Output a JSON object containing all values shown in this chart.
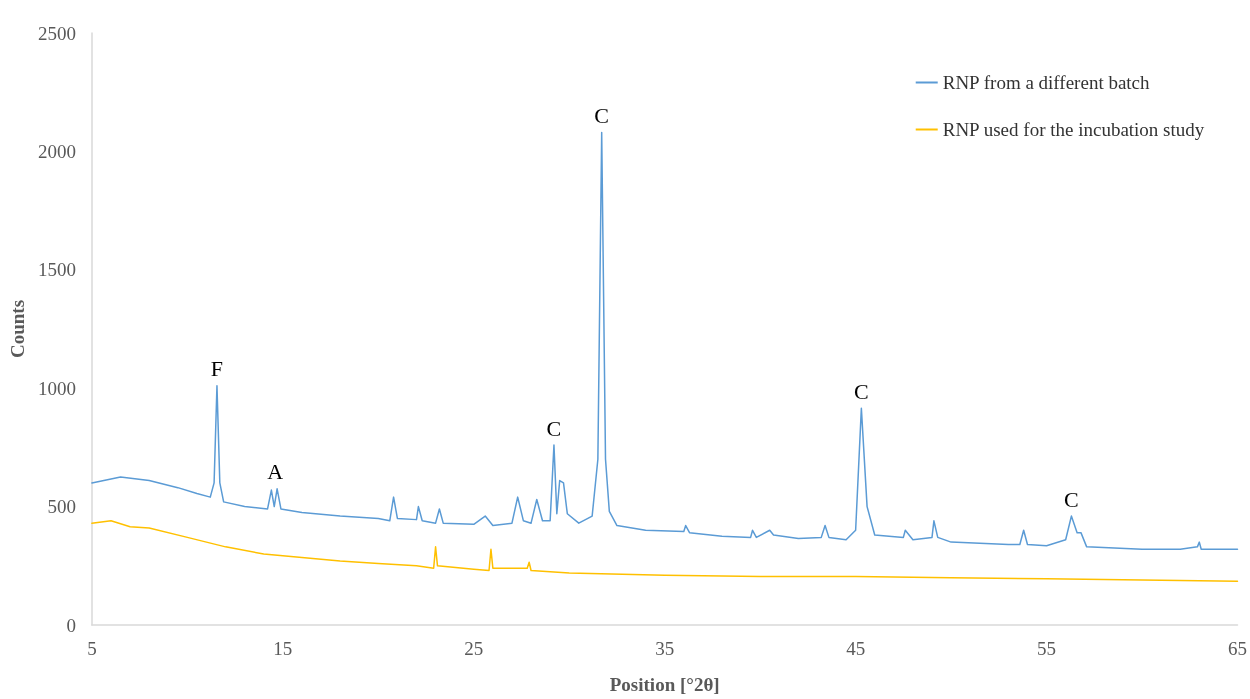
{
  "chart_data": {
    "type": "line",
    "xlabel": "Position [°2θ]",
    "ylabel": "Counts",
    "xlim": [
      5,
      65
    ],
    "xticks": [
      5,
      15,
      25,
      35,
      45,
      55,
      65
    ],
    "ylim": [
      0,
      2500
    ],
    "yticks": [
      0,
      500,
      1000,
      1500,
      2000,
      2500
    ],
    "grid": false,
    "legend": "top right",
    "marker": "none",
    "line_style": "solid",
    "series": [
      {
        "name": "RNP from a different batch",
        "color": "#5b9bd5",
        "x": [
          5,
          6.5,
          8,
          9.5,
          10.5,
          11.2,
          11.4,
          11.55,
          11.7,
          11.9,
          13,
          14.2,
          14.4,
          14.55,
          14.7,
          14.9,
          16,
          18,
          20,
          20.6,
          20.8,
          21,
          22,
          22.1,
          22.3,
          23,
          23.2,
          23.4,
          25,
          25.6,
          26,
          27,
          27.3,
          27.6,
          28,
          28.3,
          28.6,
          29,
          29.2,
          29.35,
          29.5,
          29.7,
          29.9,
          30.5,
          31.2,
          31.5,
          31.7,
          31.9,
          32.1,
          32.5,
          34,
          36,
          36.1,
          36.3,
          38,
          39.5,
          39.6,
          39.8,
          40.5,
          40.7,
          42,
          43.2,
          43.4,
          43.6,
          44.5,
          45,
          45.3,
          45.6,
          46,
          47.5,
          47.6,
          48,
          49,
          49.1,
          49.3,
          50,
          53,
          53.6,
          53.8,
          54,
          55,
          56,
          56.3,
          56.6,
          56.8,
          57.1,
          60,
          62,
          62.9,
          63,
          63.1,
          65
        ],
        "values": [
          600,
          625,
          610,
          580,
          555,
          540,
          600,
          1010,
          600,
          520,
          500,
          490,
          570,
          500,
          575,
          490,
          475,
          460,
          450,
          440,
          540,
          450,
          445,
          500,
          440,
          430,
          490,
          430,
          425,
          460,
          420,
          430,
          540,
          440,
          430,
          530,
          440,
          440,
          760,
          470,
          610,
          600,
          470,
          430,
          460,
          700,
          2080,
          700,
          480,
          420,
          400,
          395,
          420,
          390,
          375,
          370,
          400,
          370,
          400,
          380,
          365,
          370,
          420,
          370,
          360,
          400,
          915,
          500,
          380,
          370,
          400,
          360,
          370,
          440,
          370,
          350,
          340,
          340,
          400,
          340,
          335,
          360,
          460,
          390,
          390,
          330,
          320,
          320,
          330,
          350,
          320,
          320
        ]
      },
      {
        "name": "RNP used for the incubation study",
        "color": "#ffc000",
        "x": [
          5,
          6,
          7,
          8,
          10,
          12,
          14,
          16,
          18,
          20,
          22,
          22.9,
          23,
          23.1,
          25,
          25.8,
          25.9,
          26,
          27.8,
          27.9,
          28,
          30,
          35,
          40,
          45,
          50,
          55,
          60,
          65
        ],
        "values": [
          430,
          440,
          415,
          410,
          370,
          330,
          300,
          285,
          270,
          260,
          250,
          240,
          330,
          250,
          235,
          230,
          320,
          240,
          240,
          265,
          230,
          220,
          210,
          205,
          205,
          200,
          195,
          190,
          185
        ]
      }
    ],
    "annotations": [
      {
        "text": "F",
        "x": 11.55,
        "y": 1010
      },
      {
        "text": "A",
        "x": 14.6,
        "y": 575
      },
      {
        "text": "C",
        "x": 29.2,
        "y": 760
      },
      {
        "text": "C",
        "x": 31.7,
        "y": 2080
      },
      {
        "text": "C",
        "x": 45.3,
        "y": 915
      },
      {
        "text": "C",
        "x": 56.3,
        "y": 460
      }
    ]
  }
}
